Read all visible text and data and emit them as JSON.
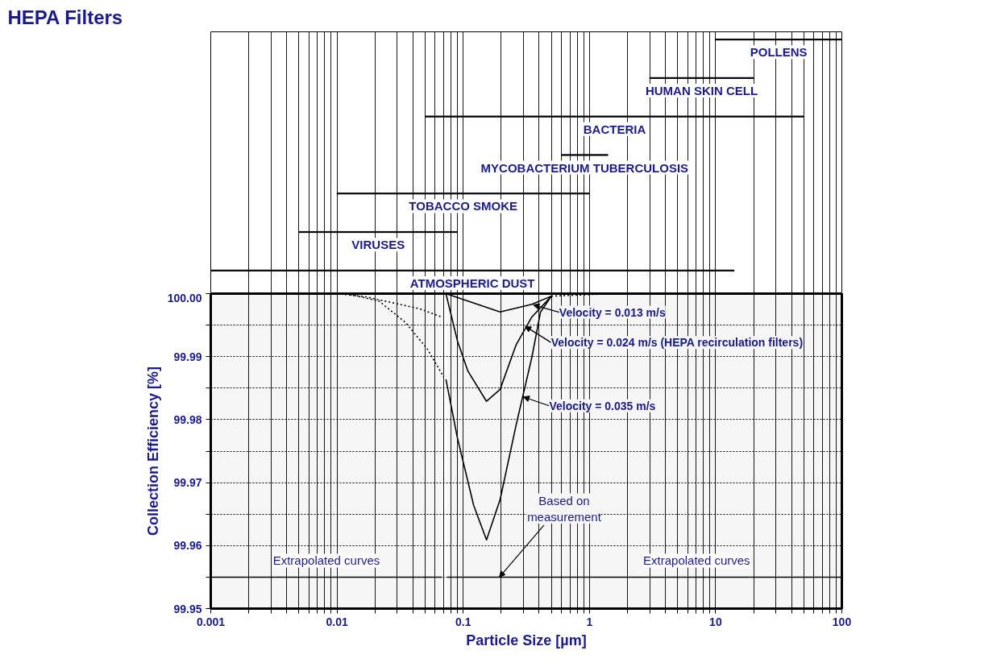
{
  "chart_data": [
    {
      "type": "bar",
      "orientation": "horizontal",
      "title": "HEPA Filters",
      "categories": [
        "POLLENS",
        "HUMAN SKIN CELL",
        "BACTERIA",
        "MYCOBACTERIUM TUBERCULOSIS",
        "TOBACCO SMOKE",
        "VIRUSES",
        "ATMOSPHERIC DUST"
      ],
      "base": [
        10,
        3,
        0.05,
        0.6,
        0.01,
        0.005,
        0.001
      ],
      "values": [
        90,
        17,
        50,
        0.8,
        0.99,
        0.085,
        14
      ],
      "color": "#000000",
      "log": "x",
      "xlim": [
        0.001,
        100
      ],
      "xticks": [
        0.001,
        {
          "value": 0.002,
          "label": null
        },
        {
          "value": 0.003,
          "label": null
        },
        {
          "value": 0.004,
          "label": null
        },
        {
          "value": 0.005,
          "label": null
        },
        {
          "value": 0.006,
          "label": null
        },
        {
          "value": 0.007,
          "label": null
        },
        {
          "value": 0.008,
          "label": null
        },
        {
          "value": 0.009,
          "label": null
        },
        0.01,
        {
          "value": 0.02,
          "label": null
        },
        {
          "value": 0.03,
          "label": null
        },
        {
          "value": 0.04,
          "label": null
        },
        {
          "value": 0.05,
          "label": null
        },
        {
          "value": 0.06,
          "label": null
        },
        {
          "value": 0.07,
          "label": null
        },
        {
          "value": 0.08,
          "label": null
        },
        {
          "value": 0.09,
          "label": null
        },
        0.1,
        {
          "value": 0.2,
          "label": null
        },
        {
          "value": 0.3,
          "label": null
        },
        {
          "value": 0.4,
          "label": null
        },
        {
          "value": 0.5,
          "label": null
        },
        {
          "value": 0.6,
          "label": null
        },
        {
          "value": 0.7,
          "label": null
        },
        {
          "value": 0.8,
          "label": null
        },
        {
          "value": 0.9,
          "label": null
        },
        1,
        {
          "value": 2,
          "label": null
        },
        {
          "value": 3,
          "label": null
        },
        {
          "value": 4,
          "label": null
        },
        {
          "value": 5,
          "label": null
        },
        {
          "value": 6,
          "label": null
        },
        {
          "value": 7,
          "label": null
        },
        {
          "value": 8,
          "label": null
        },
        {
          "value": 9,
          "label": null
        },
        10,
        {
          "value": 20,
          "label": null
        },
        {
          "value": 30,
          "label": null
        },
        {
          "value": 40,
          "label": null
        },
        {
          "value": 50,
          "label": null
        },
        {
          "value": 60,
          "label": null
        },
        {
          "value": 70,
          "label": null
        },
        {
          "value": 80,
          "label": null
        },
        {
          "value": 90,
          "label": null
        },
        100
      ],
      "tick_labels": false,
      "grid": "x"
    },
    {
      "type": "line",
      "xlabel": "Particle Size [µm]",
      "ylabel": "Collection Efficiency [%]",
      "log": "x",
      "xlim": [
        0.001,
        100
      ],
      "ylim": [
        99.95,
        100.0
      ],
      "xticks": [
        {
          "value": 0.001,
          "label": "0.001"
        },
        {
          "value": 0.002,
          "label": null
        },
        {
          "value": 0.003,
          "label": null
        },
        {
          "value": 0.004,
          "label": null
        },
        {
          "value": 0.005,
          "label": null
        },
        {
          "value": 0.006,
          "label": null
        },
        {
          "value": 0.007,
          "label": null
        },
        {
          "value": 0.008,
          "label": null
        },
        {
          "value": 0.009,
          "label": null
        },
        {
          "value": 0.01,
          "label": "0.01"
        },
        {
          "value": 0.02,
          "label": null
        },
        {
          "value": 0.03,
          "label": null
        },
        {
          "value": 0.04,
          "label": null
        },
        {
          "value": 0.05,
          "label": null
        },
        {
          "value": 0.06,
          "label": null
        },
        {
          "value": 0.07,
          "label": null
        },
        {
          "value": 0.08,
          "label": null
        },
        {
          "value": 0.09,
          "label": null
        },
        {
          "value": 0.1,
          "label": "0.1"
        },
        {
          "value": 0.2,
          "label": null
        },
        {
          "value": 0.3,
          "label": null
        },
        {
          "value": 0.4,
          "label": null
        },
        {
          "value": 0.5,
          "label": null
        },
        {
          "value": 0.6,
          "label": null
        },
        {
          "value": 0.7,
          "label": null
        },
        {
          "value": 0.8,
          "label": null
        },
        {
          "value": 0.9,
          "label": null
        },
        {
          "value": 1,
          "label": "1"
        },
        {
          "value": 2,
          "label": null
        },
        {
          "value": 3,
          "label": null
        },
        {
          "value": 4,
          "label": null
        },
        {
          "value": 5,
          "label": null
        },
        {
          "value": 6,
          "label": null
        },
        {
          "value": 7,
          "label": null
        },
        {
          "value": 8,
          "label": null
        },
        {
          "value": 9,
          "label": null
        },
        {
          "value": 10,
          "label": "10"
        },
        {
          "value": 20,
          "label": null
        },
        {
          "value": 30,
          "label": null
        },
        {
          "value": 40,
          "label": null
        },
        {
          "value": 50,
          "label": null
        },
        {
          "value": 60,
          "label": null
        },
        {
          "value": 70,
          "label": null
        },
        {
          "value": 80,
          "label": null
        },
        {
          "value": 90,
          "label": null
        },
        {
          "value": 100,
          "label": "100"
        }
      ],
      "yticks": [
        99.95,
        {
          "value": 99.955,
          "label": null
        },
        99.96,
        {
          "value": 99.965,
          "label": null
        },
        99.97,
        {
          "value": 99.975,
          "label": null
        },
        99.98,
        {
          "value": 99.985,
          "label": null
        },
        99.99,
        {
          "value": 99.995,
          "label": null
        },
        {
          "value": 100.0,
          "label": "100.00"
        }
      ],
      "grid": true,
      "series": [
        {
          "color": "#000000",
          "line_style": "solid",
          "x": [
            0.073,
            0.196,
            0.35,
            0.5
          ],
          "values": [
            100.0,
            99.9971,
            99.9983,
            99.9996
          ]
        },
        {
          "color": "#000000",
          "line_style": "solid",
          "x": [
            0.073,
            0.09,
            0.109,
            0.153,
            0.196,
            0.263,
            0.35,
            0.5
          ],
          "values": [
            100.0,
            99.9925,
            99.9877,
            99.9829,
            99.9848,
            99.9919,
            99.9963,
            99.9996
          ]
        },
        {
          "color": "#000000",
          "line_style": "solid",
          "x": [
            0.073,
            0.09,
            0.121,
            0.153,
            0.196,
            0.263,
            0.35,
            0.41,
            0.5
          ],
          "values": [
            99.9864,
            99.9771,
            99.9664,
            99.9609,
            99.9673,
            99.9792,
            99.9899,
            99.9971,
            99.9996
          ]
        },
        {
          "color": "#000000",
          "line_style": "dotted",
          "x": [
            0.01,
            0.0168,
            0.045,
            0.067
          ],
          "values": [
            100.0,
            99.9995,
            99.9976,
            99.9963
          ]
        },
        {
          "color": "#000000",
          "line_style": "dotted",
          "x": [
            0.012,
            0.0216,
            0.035,
            0.052,
            0.07
          ],
          "values": [
            100.0,
            99.9988,
            99.9954,
            99.9912,
            99.9868
          ]
        },
        {
          "color": "#000000",
          "line_style": "dotted",
          "x": [
            0.5,
            1.5
          ],
          "values": [
            99.9996,
            100.0
          ]
        }
      ],
      "annotations": [
        {
          "text": "Velocity = 0.013 m/s",
          "x": 0.36,
          "y": 99.9982
        },
        {
          "text": "Velocity = 0.024 m/s (HEPA recirculation filters)",
          "x": 0.31,
          "y": 99.9948
        },
        {
          "text": "Velocity = 0.035 m/s",
          "x": 0.3,
          "y": 99.9836
        },
        "Based on measurement"
      ],
      "bands": [
        {
          "axis": "x",
          "from": 0.001,
          "to": 0.068,
          "label": "Extrapolated curves"
        },
        {
          "axis": "x",
          "from": 0.075,
          "to": 0.5
        },
        {
          "axis": "x",
          "from": 0.5,
          "to": 100,
          "label": "Extrapolated curves"
        }
      ]
    }
  ]
}
